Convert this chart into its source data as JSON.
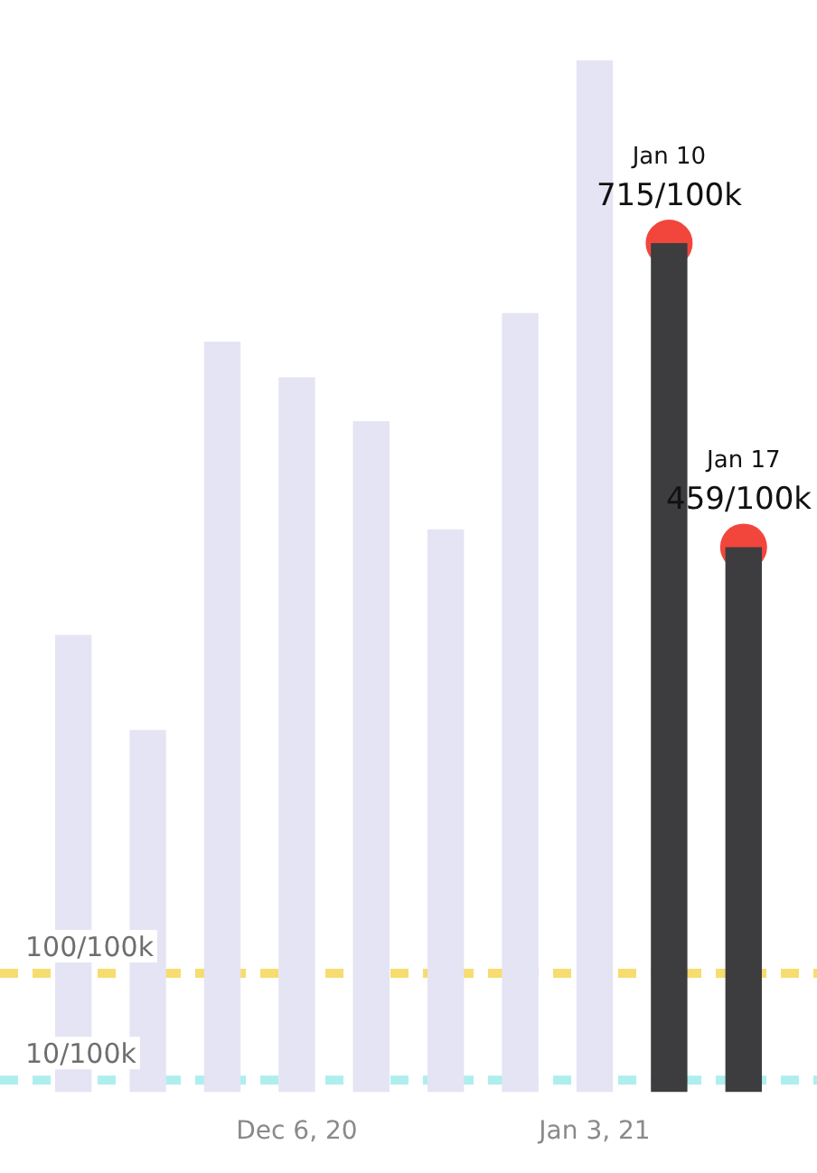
{
  "chart_data": {
    "type": "bar",
    "categories": [
      null,
      null,
      null,
      "Dec 6, 20",
      null,
      null,
      null,
      "Jan 3, 21",
      null,
      null
    ],
    "series": [
      {
        "colors": [
          "#e4e4f4",
          "#e4e4f4",
          "#e4e4f4",
          "#e4e4f4",
          "#e4e4f4",
          "#e4e4f4",
          "#e4e4f4",
          "#e4e4f4",
          "#3d3d3f",
          "#3d3d3f"
        ],
        "values": [
          385,
          305,
          632,
          602,
          565,
          474,
          656,
          869,
          715,
          459
        ]
      },
      {
        "type": "scatter",
        "color": "#f2463c",
        "marker": "circle",
        "values": [
          null,
          null,
          null,
          null,
          null,
          null,
          null,
          null,
          715,
          459
        ],
        "value_labels": [
          null,
          null,
          null,
          null,
          null,
          null,
          null,
          null,
          "715/100k",
          "459/100k"
        ]
      }
    ],
    "tick_labels": "x",
    "grid": false,
    "legend": false,
    "ref_lines": [
      {
        "axis": "y",
        "value": 100,
        "label": "100/100k",
        "color": "#f7dc6f",
        "line_style": "dashed"
      },
      {
        "axis": "y",
        "value": 10,
        "label": "10/100k",
        "color": "#aeeeee",
        "line_style": "dashed"
      }
    ],
    "annotations": [
      "Jan 10",
      "Jan 17"
    ]
  }
}
